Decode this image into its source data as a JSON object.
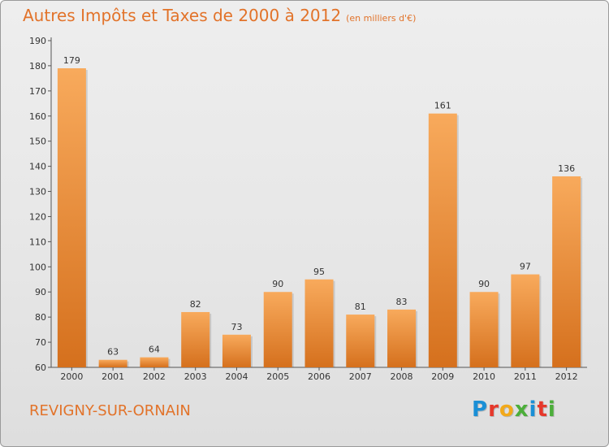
{
  "title": "Autres Impôts et Taxes de 2000 à 2012",
  "unit": "(en milliers d'€)",
  "place": "REVIGNY-SUR-ORNAIN",
  "logo": {
    "text": "Proxiti",
    "colors": [
      "#1a8fd6",
      "#e6382b",
      "#f2a91a",
      "#4cae3a",
      "#1a8fd6",
      "#e6382b",
      "#4cae3a"
    ]
  },
  "colors": {
    "bar_top": "#f8aa5c",
    "bar_bottom": "#d5701d",
    "accent": "#e2732a"
  },
  "chart_data": {
    "type": "bar",
    "categories": [
      "2000",
      "2001",
      "2002",
      "2003",
      "2004",
      "2005",
      "2006",
      "2007",
      "2008",
      "2009",
      "2010",
      "2011",
      "2012"
    ],
    "values": [
      179,
      63,
      64,
      82,
      73,
      90,
      95,
      81,
      83,
      161,
      90,
      97,
      136
    ],
    "ylim": [
      60,
      190
    ],
    "yticks": [
      60,
      70,
      80,
      90,
      100,
      110,
      120,
      130,
      140,
      150,
      160,
      170,
      180,
      190
    ],
    "grid": false,
    "data_labels": true
  }
}
